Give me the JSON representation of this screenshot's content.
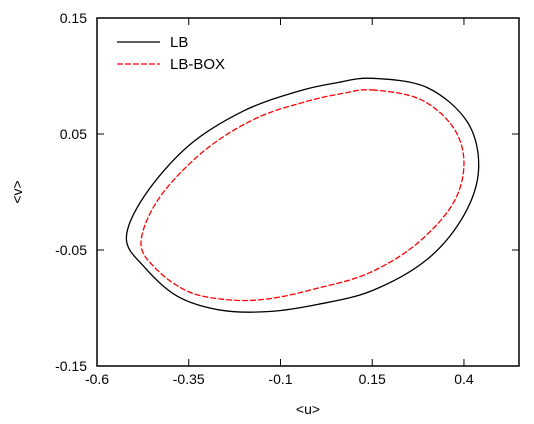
{
  "chart_data": {
    "type": "line",
    "title": "",
    "xlabel": "<u>",
    "ylabel": "<v>",
    "xlim": [
      -0.6,
      0.55
    ],
    "ylim": [
      -0.15,
      0.15
    ],
    "xticks": [
      -0.6,
      -0.35,
      -0.1,
      0.15,
      0.4
    ],
    "xtick_labels": [
      "-0.6",
      "-0.35",
      "-0.1",
      "0.15",
      "0.4"
    ],
    "yticks": [
      -0.15,
      -0.05,
      0.05,
      0.15
    ],
    "ytick_labels": [
      "-0.15",
      "-0.05",
      "0.05",
      "0.15"
    ],
    "grid": false,
    "legend_position": "top-left",
    "series": [
      {
        "name": "LB",
        "color": "#000000",
        "style": "solid",
        "x": [
          0.15,
          0.3,
          0.41,
          0.44,
          0.4,
          0.3,
          0.15,
          0.0,
          -0.13,
          -0.26,
          -0.38,
          -0.47,
          -0.52,
          -0.47,
          -0.35,
          -0.2,
          -0.05,
          0.05,
          0.15
        ],
        "y": [
          0.098,
          0.09,
          0.06,
          0.02,
          -0.02,
          -0.058,
          -0.085,
          -0.097,
          -0.103,
          -0.102,
          -0.09,
          -0.065,
          -0.04,
          -0.003,
          0.04,
          0.07,
          0.087,
          0.094,
          0.098
        ]
      },
      {
        "name": "LB-BOX",
        "color": "#ff0000",
        "style": "dashed",
        "x": [
          0.15,
          0.28,
          0.37,
          0.4,
          0.37,
          0.27,
          0.14,
          0.0,
          -0.13,
          -0.24,
          -0.35,
          -0.44,
          -0.48,
          -0.43,
          -0.31,
          -0.17,
          -0.03,
          0.07,
          0.15
        ],
        "y": [
          0.088,
          0.08,
          0.056,
          0.025,
          -0.01,
          -0.045,
          -0.07,
          -0.083,
          -0.092,
          -0.093,
          -0.086,
          -0.066,
          -0.043,
          -0.005,
          0.035,
          0.063,
          0.078,
          0.085,
          0.088
        ]
      }
    ]
  }
}
